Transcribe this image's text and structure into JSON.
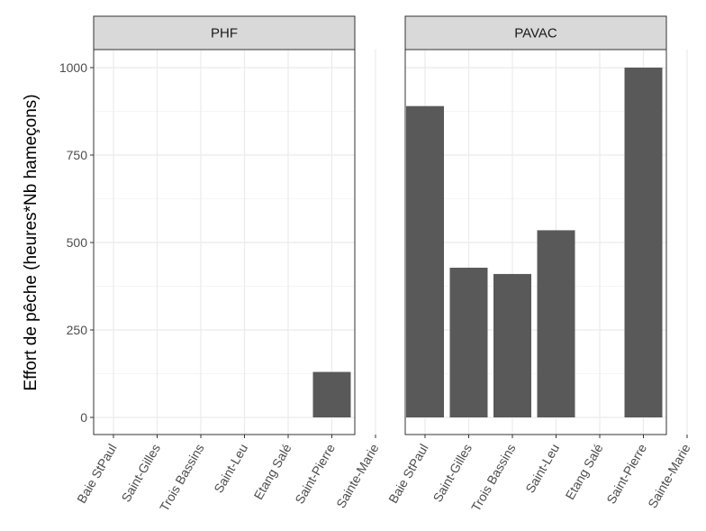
{
  "chart_data": {
    "type": "bar",
    "ylabel": "Effort de pêche (heures*Nb hameçons)",
    "xlabel": "",
    "ylim": [
      0,
      1000
    ],
    "yticks": [
      0,
      250,
      500,
      750,
      1000
    ],
    "categories": [
      "Baie StPaul",
      "Saint-Gilles",
      "Trois Bassins",
      "Saint-Leu",
      "Etang Salé",
      "Saint-Pierre",
      "Sainte-Marie"
    ],
    "panels": [
      {
        "name": "PHF",
        "values": [
          0,
          0,
          0,
          0,
          0,
          130,
          0
        ]
      },
      {
        "name": "PAVAC",
        "values": [
          890,
          428,
          410,
          535,
          0,
          1000,
          0
        ]
      }
    ],
    "grid": true,
    "bar_color": "#595959"
  }
}
